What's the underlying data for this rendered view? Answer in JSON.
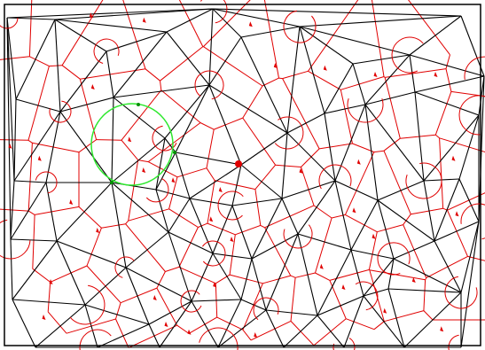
{
  "diagram": {
    "type": "triangulation-with-voronoi-dual",
    "colors": {
      "background": "#ffffff",
      "frame": "#000000",
      "delaunay_edges": "#000000",
      "voronoi_edges": "#e00000",
      "angle_arcs": "#e00000",
      "markers": "#e00000",
      "highlight_circle": "#2ee82e",
      "selected_vertex": "#e00000",
      "circle_points": "#009000"
    },
    "selected_vertex_label": "",
    "highlight_circle_label": ""
  }
}
